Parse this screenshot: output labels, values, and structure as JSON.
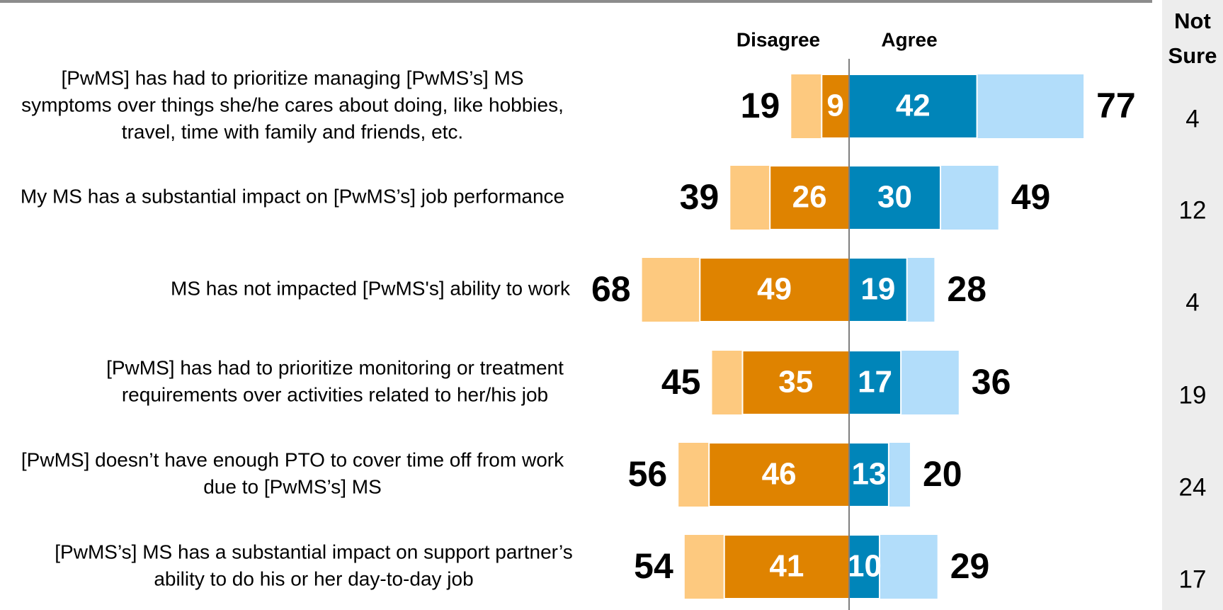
{
  "chart_data": {
    "type": "bar",
    "headers": {
      "disagree": "Disagree",
      "agree": "Agree",
      "not_sure": [
        "Not",
        "Sure"
      ]
    },
    "categories": [
      [
        "[PwMS] has had to prioritize managing [PwMS’s] MS",
        "symptoms over things she/he cares about doing, like hobbies,",
        "travel, time with family and friends, etc."
      ],
      [
        "My MS has a substantial impact on [PwMS’s] job performance"
      ],
      [
        "MS has not impacted [PwMS's] ability to work"
      ],
      [
        "[PwMS] has had to prioritize monitoring or treatment",
        "requirements over activities related to her/his job"
      ],
      [
        "[PwMS] doesn’t have enough PTO to cover time off from work",
        "due to [PwMS’s] MS"
      ],
      [
        "[PwMS’s] MS has a substantial impact on support partner’s",
        "ability to do his or her day-to-day job"
      ]
    ],
    "disagree": {
      "strong": {
        "color": "#df8300",
        "values": [
          9,
          26,
          49,
          35,
          46,
          41
        ]
      },
      "total": {
        "color": "#fdc97f",
        "values": [
          19,
          39,
          68,
          45,
          56,
          54
        ]
      }
    },
    "agree": {
      "strong": {
        "color": "#0085b9",
        "values": [
          42,
          30,
          19,
          17,
          13,
          10
        ]
      },
      "total": {
        "color": "#b2ddfa",
        "values": [
          77,
          49,
          28,
          36,
          20,
          29
        ]
      }
    },
    "not_sure": [
      4,
      12,
      4,
      19,
      24,
      17
    ]
  }
}
